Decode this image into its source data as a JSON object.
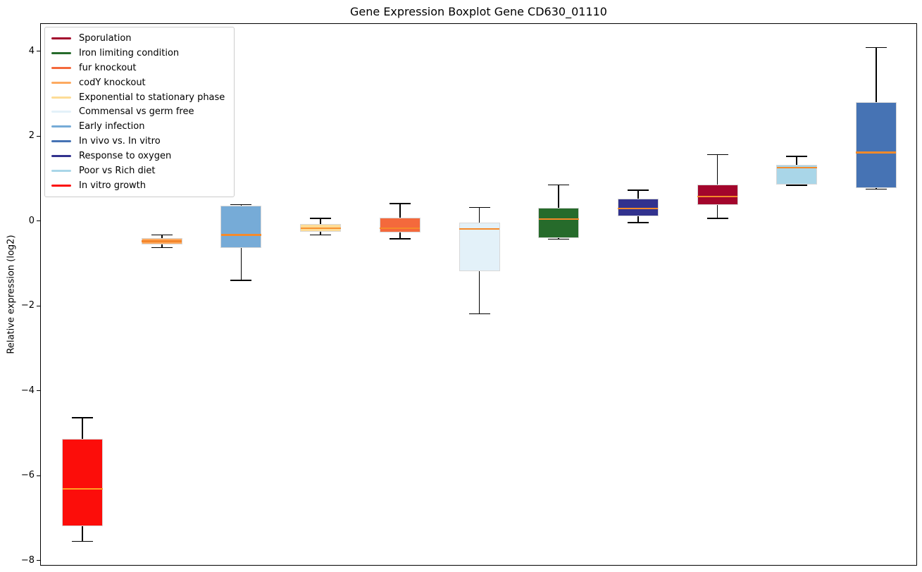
{
  "chart_data": {
    "type": "boxplot",
    "title": "Gene Expression Boxplot Gene CD630_01110",
    "ylabel": "Relative expression (log2)",
    "ylim": [
      -8.12,
      4.66
    ],
    "xlim": [
      0.475,
      11.525
    ],
    "yticks": [
      4,
      2,
      0,
      -2,
      -4,
      -6,
      -8
    ],
    "grid": false,
    "legend_position": "upper left",
    "colors": {
      "default_median": "#F58A2A",
      "whisker": "#000000",
      "box_edge": "#D8D8D8",
      "spine": "#000000",
      "legend_border": "#cccccc"
    },
    "series": [
      {
        "label": "Sporulation",
        "color": "#A3052C",
        "position": 9,
        "stats": {
          "whislo": 0.08,
          "q1": 0.39,
          "med": 0.6,
          "q3": 0.88,
          "whishi": 1.58
        }
      },
      {
        "label": "Iron limiting condition",
        "color": "#266B2B",
        "position": 7,
        "stats": {
          "whislo": -0.41,
          "q1": -0.39,
          "med": 0.06,
          "q3": 0.32,
          "whishi": 0.87
        }
      },
      {
        "label": "fur knockout",
        "color": "#F4693C",
        "position": 5,
        "stats": {
          "whislo": -0.4,
          "q1": -0.26,
          "med": -0.16,
          "q3": 0.09,
          "whishi": 0.43
        }
      },
      {
        "label": "codY knockout",
        "color": "#FDAA60",
        "position": 2,
        "median_color": "#F4862B",
        "stats": {
          "whislo": -0.61,
          "q1": -0.54,
          "med": -0.46,
          "q3": -0.38,
          "whishi": -0.31
        }
      },
      {
        "label": "Exponential to stationary phase",
        "color": "#FDDC96",
        "position": 4,
        "median_color": "#F89432",
        "stats": {
          "whislo": -0.31,
          "q1": -0.24,
          "med": -0.16,
          "q3": -0.05,
          "whishi": 0.08
        }
      },
      {
        "label": "Commensal vs germ free",
        "color": "#E3F1F9",
        "position": 6,
        "stats": {
          "whislo": -2.17,
          "q1": -1.16,
          "med": -0.17,
          "q3": -0.02,
          "whishi": 0.34
        }
      },
      {
        "label": "Early infection",
        "color": "#76ABD7",
        "position": 3,
        "stats": {
          "whislo": -1.38,
          "q1": -0.62,
          "med": -0.31,
          "q3": 0.38,
          "whishi": 0.4
        }
      },
      {
        "label": "In vivo vs. In vitro",
        "color": "#4673B4",
        "position": 11,
        "stats": {
          "whislo": 0.77,
          "q1": 0.79,
          "med": 1.63,
          "q3": 2.82,
          "whishi": 4.1
        }
      },
      {
        "label": "Response to oxygen",
        "color": "#32328E",
        "position": 8,
        "stats": {
          "whislo": -0.02,
          "q1": 0.13,
          "med": 0.31,
          "q3": 0.55,
          "whishi": 0.74
        }
      },
      {
        "label": "Poor vs Rich diet",
        "color": "#A9D6E8",
        "position": 10,
        "stats": {
          "whislo": 0.86,
          "q1": 0.87,
          "med": 1.27,
          "q3": 1.34,
          "whishi": 1.54
        }
      },
      {
        "label": "In vitro growth",
        "color": "#FC0D0A",
        "position": 1,
        "median_color": "#FFA023",
        "stats": {
          "whislo": -7.53,
          "q1": -7.18,
          "med": -6.29,
          "q3": -5.11,
          "whishi": -4.62
        }
      }
    ]
  }
}
